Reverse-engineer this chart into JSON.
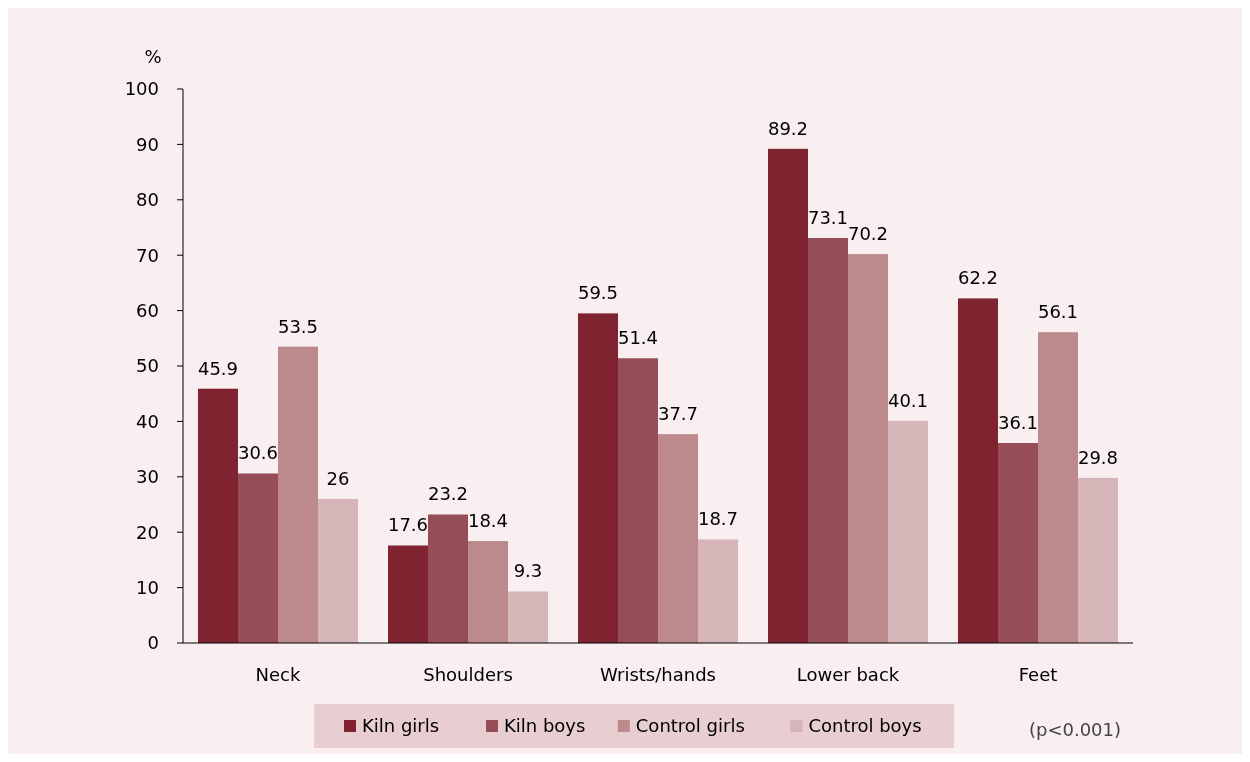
{
  "chart_data": {
    "type": "bar",
    "ylabel": "%",
    "categories": [
      "Neck",
      "Shoulders",
      "Wrists/hands",
      "Lower back",
      "Feet"
    ],
    "series": [
      {
        "name": "Kiln girls",
        "color": "#7f2330",
        "values": [
          45.9,
          17.6,
          59.5,
          89.2,
          62.2
        ]
      },
      {
        "name": "Kiln boys",
        "color": "#954e57",
        "values": [
          30.6,
          23.2,
          51.4,
          73.1,
          36.1
        ]
      },
      {
        "name": "Control girls",
        "color": "#bc8a8d",
        "values": [
          53.5,
          18.4,
          37.7,
          70.2,
          56.1
        ]
      },
      {
        "name": "Control boys",
        "color": "#d6b5b8",
        "values": [
          26,
          9.3,
          18.7,
          40.1,
          29.8
        ]
      }
    ],
    "ylim": [
      0,
      100
    ],
    "yticks": [
      0,
      10,
      20,
      30,
      40,
      50,
      60,
      70,
      80,
      90,
      100
    ],
    "data_labels": true,
    "legend": "bottom",
    "grid": false,
    "annotations": [
      "(p<0.001)"
    ]
  }
}
